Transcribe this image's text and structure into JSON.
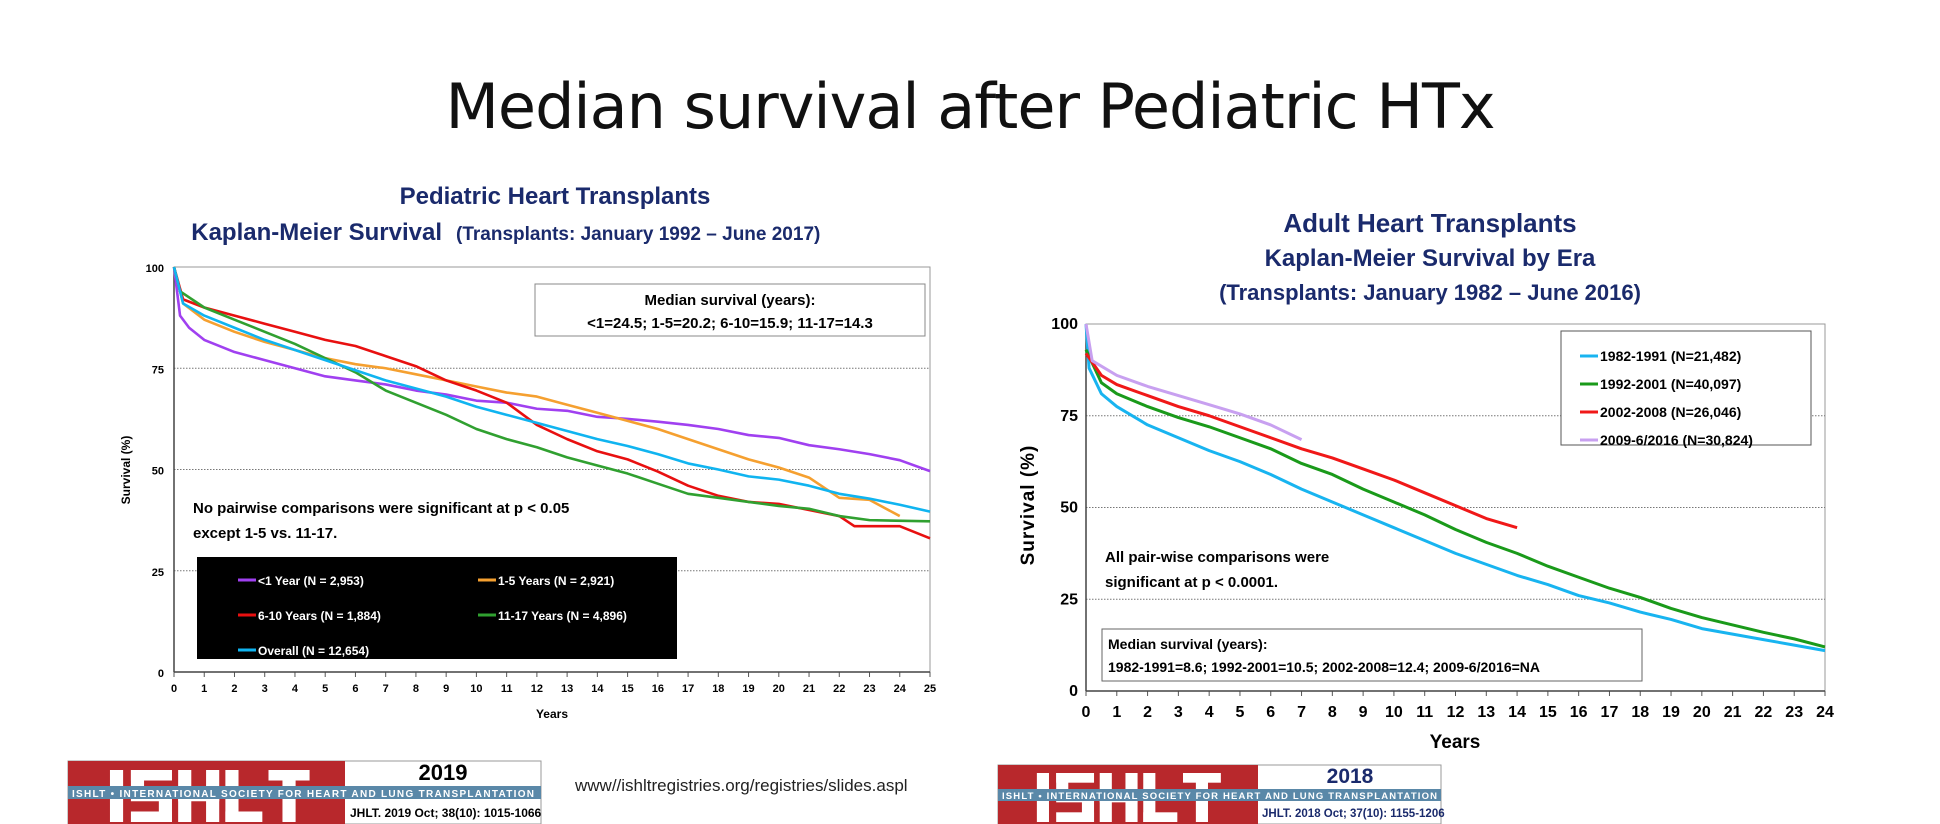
{
  "slide": {
    "title": "Median survival after Pediatric HTx",
    "source_url": "www//ishltregistries.org/registries/slides.aspl"
  },
  "chart_data": [
    {
      "type": "line",
      "title": "Pediatric Heart Transplants",
      "subtitle_main": "Kaplan-Meier Survival",
      "subtitle_paren": "(Transplants: January 1992 – June 2017)",
      "xlabel": "Years",
      "ylabel": "Survival (%)",
      "xlim": [
        0,
        25
      ],
      "ylim": [
        0,
        100
      ],
      "xticks": [
        0,
        1,
        2,
        3,
        4,
        5,
        6,
        7,
        8,
        9,
        10,
        11,
        12,
        13,
        14,
        15,
        16,
        17,
        18,
        19,
        20,
        21,
        22,
        23,
        24,
        25
      ],
      "yticks": [
        0,
        25,
        50,
        75,
        100
      ],
      "grid": "horizontal dotted",
      "legend_placement": "bottom-left",
      "annotation_box": [
        "Median survival (years):",
        "<1=24.5; 1-5=20.2; 6-10=15.9; 11-17=14.3"
      ],
      "note": [
        "No pairwise comparisons were significant at p < 0.05",
        "except 1-5 vs. 11-17."
      ],
      "series": [
        {
          "name": "<1 Year (N = 2,953)",
          "color": "#a040f0",
          "points": [
            [
              0,
              100
            ],
            [
              0.2,
              88
            ],
            [
              0.5,
              85
            ],
            [
              1,
              82
            ],
            [
              2,
              79
            ],
            [
              3,
              77
            ],
            [
              4,
              75
            ],
            [
              5,
              73
            ],
            [
              6,
              72
            ],
            [
              7,
              71
            ],
            [
              8,
              69.5
            ],
            [
              9,
              68.5
            ],
            [
              10,
              67
            ],
            [
              11,
              66.5
            ],
            [
              12,
              65
            ],
            [
              13,
              64.5
            ],
            [
              14,
              63
            ],
            [
              15,
              62.5
            ],
            [
              16,
              61.8
            ],
            [
              17,
              61
            ],
            [
              18,
              60
            ],
            [
              19,
              58.5
            ],
            [
              20,
              57.8
            ],
            [
              21,
              56
            ],
            [
              22,
              55
            ],
            [
              23,
              53.8
            ],
            [
              24,
              52.3
            ],
            [
              25,
              49.6
            ]
          ]
        },
        {
          "name": "1-5 Years (N = 2,921)",
          "color": "#f5a030",
          "points": [
            [
              0,
              100
            ],
            [
              0.3,
              91
            ],
            [
              1,
              87
            ],
            [
              2,
              84
            ],
            [
              3,
              81.5
            ],
            [
              4,
              79.5
            ],
            [
              5,
              77.5
            ],
            [
              6,
              76
            ],
            [
              7,
              75
            ],
            [
              8,
              73.5
            ],
            [
              9,
              72
            ],
            [
              10,
              70.5
            ],
            [
              11,
              69
            ],
            [
              12,
              68
            ],
            [
              13,
              66
            ],
            [
              14,
              64
            ],
            [
              15,
              62
            ],
            [
              16,
              60
            ],
            [
              17,
              57.5
            ],
            [
              18,
              55
            ],
            [
              19,
              52.5
            ],
            [
              20,
              50.5
            ],
            [
              21,
              48
            ],
            [
              22,
              43
            ],
            [
              23,
              42.5
            ],
            [
              24,
              38.5
            ]
          ]
        },
        {
          "name": "6-10 Years (N = 1,884)",
          "color": "#e81010",
          "points": [
            [
              0,
              100
            ],
            [
              0.3,
              92
            ],
            [
              1,
              90
            ],
            [
              2,
              88
            ],
            [
              3,
              86
            ],
            [
              4,
              84
            ],
            [
              5,
              82
            ],
            [
              6,
              80.5
            ],
            [
              7,
              78
            ],
            [
              8,
              75.5
            ],
            [
              9,
              72
            ],
            [
              10,
              69.5
            ],
            [
              11,
              66.5
            ],
            [
              12,
              61
            ],
            [
              13,
              57.5
            ],
            [
              14,
              54.5
            ],
            [
              15,
              52.5
            ],
            [
              16,
              49.5
            ],
            [
              17,
              46
            ],
            [
              18,
              43.5
            ],
            [
              19,
              42
            ],
            [
              20,
              41.5
            ],
            [
              21,
              40
            ],
            [
              22,
              38.5
            ],
            [
              22.5,
              36
            ],
            [
              24,
              36
            ],
            [
              25,
              33
            ]
          ]
        },
        {
          "name": "11-17 Years (N = 4,896)",
          "color": "#30a030",
          "points": [
            [
              0,
              100
            ],
            [
              0.2,
              94
            ],
            [
              1,
              90
            ],
            [
              2,
              87
            ],
            [
              3,
              84
            ],
            [
              4,
              81
            ],
            [
              5,
              77.5
            ],
            [
              6,
              74
            ],
            [
              7,
              69.5
            ],
            [
              8,
              66.5
            ],
            [
              9,
              63.5
            ],
            [
              10,
              60
            ],
            [
              11,
              57.5
            ],
            [
              12,
              55.5
            ],
            [
              13,
              53
            ],
            [
              14,
              51
            ],
            [
              15,
              49
            ],
            [
              16,
              46.5
            ],
            [
              17,
              44
            ],
            [
              18,
              43
            ],
            [
              19,
              42
            ],
            [
              20,
              41
            ],
            [
              21,
              40.3
            ],
            [
              22,
              38.5
            ],
            [
              23,
              37.5
            ],
            [
              25,
              37.2
            ]
          ]
        },
        {
          "name": "Overall (N = 12,654)",
          "color": "#10b4f0",
          "points": [
            [
              0,
              100
            ],
            [
              0.3,
              91
            ],
            [
              1,
              88
            ],
            [
              2,
              85
            ],
            [
              3,
              82
            ],
            [
              4,
              79.5
            ],
            [
              5,
              77
            ],
            [
              6,
              74.5
            ],
            [
              7,
              72
            ],
            [
              8,
              70
            ],
            [
              9,
              68
            ],
            [
              10,
              65.5
            ],
            [
              11,
              63.5
            ],
            [
              12,
              61.5
            ],
            [
              13,
              59.5
            ],
            [
              14,
              57.5
            ],
            [
              15,
              55.8
            ],
            [
              16,
              53.8
            ],
            [
              17,
              51.5
            ],
            [
              18,
              50
            ],
            [
              19,
              48.3
            ],
            [
              20,
              47.5
            ],
            [
              21,
              46
            ],
            [
              22,
              44
            ],
            [
              23,
              42.8
            ],
            [
              24,
              41.3
            ],
            [
              25,
              39.6
            ]
          ]
        }
      ]
    },
    {
      "type": "line",
      "title": "Adult Heart Transplants",
      "subtitle_main": "Kaplan-Meier Survival by Era",
      "subtitle_paren": "(Transplants: January 1982 – June 2016)",
      "xlabel": "Years",
      "ylabel": "Survival (%)",
      "xlim": [
        0,
        24
      ],
      "ylim": [
        0,
        100
      ],
      "xticks": [
        0,
        1,
        2,
        3,
        4,
        5,
        6,
        7,
        8,
        9,
        10,
        11,
        12,
        13,
        14,
        15,
        16,
        17,
        18,
        19,
        20,
        21,
        22,
        23,
        24
      ],
      "yticks": [
        0,
        25,
        50,
        75,
        100
      ],
      "grid": "horizontal dotted",
      "legend_placement": "top-right",
      "annotation_box": [
        "Median survival (years):",
        "1982-1991=8.6; 1992-2001=10.5; 2002-2008=12.4; 2009-6/2016=NA"
      ],
      "note": [
        "All pair-wise comparisons were",
        "significant at p < 0.0001."
      ],
      "series": [
        {
          "name": "1982-1991 (N=21,482)",
          "color": "#18b4f0",
          "points": [
            [
              0,
              100
            ],
            [
              0.1,
              88
            ],
            [
              0.5,
              81
            ],
            [
              1,
              77.5
            ],
            [
              2,
              72.5
            ],
            [
              3,
              69
            ],
            [
              4,
              65.5
            ],
            [
              5,
              62.5
            ],
            [
              6,
              59
            ],
            [
              7,
              55
            ],
            [
              8,
              51.5
            ],
            [
              9,
              48
            ],
            [
              10,
              44.5
            ],
            [
              11,
              41
            ],
            [
              12,
              37.5
            ],
            [
              13,
              34.5
            ],
            [
              14,
              31.5
            ],
            [
              15,
              29
            ],
            [
              16,
              26
            ],
            [
              17,
              24
            ],
            [
              18,
              21.5
            ],
            [
              19,
              19.5
            ],
            [
              20,
              17
            ],
            [
              21,
              15.5
            ],
            [
              22,
              14
            ],
            [
              23,
              12.5
            ],
            [
              24,
              11
            ]
          ]
        },
        {
          "name": "1992-2001 (N=40,097)",
          "color": "#1a9a1a",
          "points": [
            [
              0,
              93
            ],
            [
              0.5,
              84
            ],
            [
              1,
              81
            ],
            [
              2,
              77.5
            ],
            [
              3,
              74.5
            ],
            [
              4,
              72
            ],
            [
              5,
              69
            ],
            [
              6,
              66
            ],
            [
              7,
              62
            ],
            [
              8,
              59
            ],
            [
              9,
              55
            ],
            [
              10,
              51.5
            ],
            [
              11,
              48
            ],
            [
              12,
              44
            ],
            [
              13,
              40.5
            ],
            [
              14,
              37.5
            ],
            [
              15,
              34
            ],
            [
              16,
              31
            ],
            [
              17,
              28
            ],
            [
              18,
              25.5
            ],
            [
              19,
              22.5
            ],
            [
              20,
              20
            ],
            [
              21,
              18
            ],
            [
              22,
              16
            ],
            [
              23,
              14.2
            ],
            [
              24,
              12
            ]
          ]
        },
        {
          "name": "2002-2008 (N=26,046)",
          "color": "#f01818",
          "points": [
            [
              0,
              92
            ],
            [
              0.5,
              86
            ],
            [
              1,
              83.5
            ],
            [
              2,
              80.5
            ],
            [
              3,
              77.5
            ],
            [
              4,
              75
            ],
            [
              5,
              72
            ],
            [
              6,
              69
            ],
            [
              7,
              66
            ],
            [
              8,
              63.5
            ],
            [
              9,
              60.5
            ],
            [
              10,
              57.5
            ],
            [
              11,
              54
            ],
            [
              12,
              50.5
            ],
            [
              13,
              47
            ],
            [
              14,
              44.5
            ]
          ]
        },
        {
          "name": "2009-6/2016 (N=30,824)",
          "color": "#c8a0f0",
          "points": [
            [
              0,
              100
            ],
            [
              0.2,
              90
            ],
            [
              1,
              86
            ],
            [
              2,
              83
            ],
            [
              3,
              80.5
            ],
            [
              4,
              78
            ],
            [
              5,
              75.5
            ],
            [
              6,
              72.5
            ],
            [
              7,
              68.5
            ]
          ]
        }
      ]
    }
  ],
  "footer": [
    {
      "logo": "ISHLT",
      "year": "2019",
      "band": "ISHLT • INTERNATIONAL SOCIETY FOR HEART AND LUNG TRANSPLANTATION",
      "citation": "JHLT. 2019 Oct; 38(10): 1015-1066",
      "year_color": "#000000"
    },
    {
      "logo": "ISHLT",
      "year": "2018",
      "band": "ISHLT • INTERNATIONAL SOCIETY FOR HEART AND LUNG TRANSPLANTATION",
      "citation": "JHLT. 2018 Oct; 37(10): 1155-1206",
      "year_color": "#1a2a6c"
    }
  ]
}
